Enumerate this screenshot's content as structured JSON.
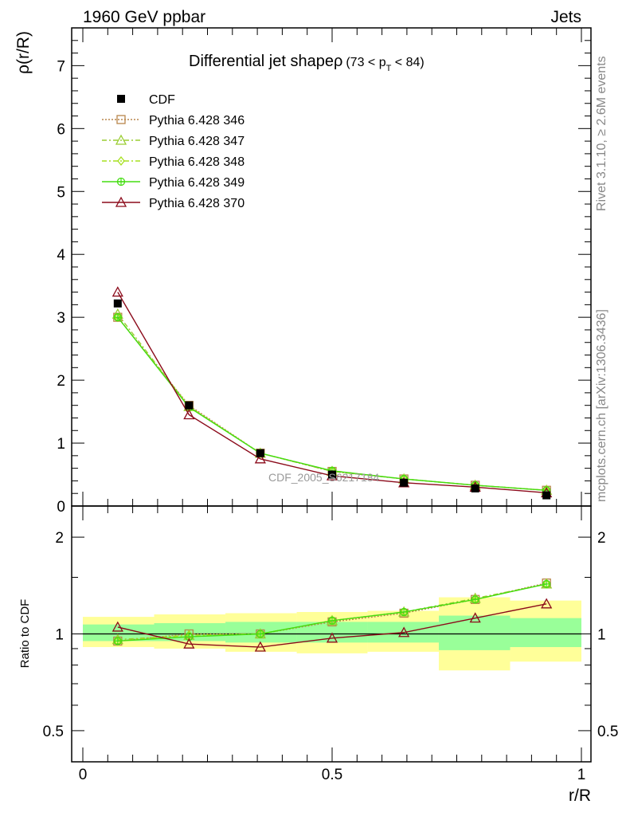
{
  "header": {
    "left": "1960 GeV ppbar",
    "right": "Jets"
  },
  "side_labels": {
    "rivet": "Rivet 3.1.10, ≥ 2.6M events",
    "mcplots": "mcplots.cern.ch [arXiv:1306.3436]"
  },
  "watermark": "CDF_2005_S6217184",
  "chart_data": [
    {
      "type": "line",
      "panel": "main",
      "title_main": "Differential jet shapeρ",
      "title_cut_pre": "(73 < p",
      "title_cut_sub": "T",
      "title_cut_post": " < 84)",
      "ylabel": "ρ(r/R)",
      "xlim": [
        0,
        1
      ],
      "ylim": [
        0,
        7.6
      ],
      "yticks": [
        0,
        1,
        2,
        3,
        4,
        5,
        6,
        7
      ],
      "yticklabels": [
        "0",
        "1",
        "2",
        "3",
        "4",
        "5",
        "6",
        "7"
      ],
      "legend_position": "top-left",
      "x": [
        0.07,
        0.213,
        0.356,
        0.5,
        0.644,
        0.787,
        0.93
      ],
      "series": [
        {
          "name": "CDF",
          "marker": "filled-square",
          "color": "#000000",
          "style": "solid",
          "values": [
            3.22,
            1.6,
            0.84,
            0.5,
            0.37,
            0.28,
            0.17
          ]
        },
        {
          "name": "Pythia 6.428 346",
          "marker": "open-square",
          "color": "#b8864b",
          "style": "dotted",
          "values": [
            3.0,
            1.6,
            0.84,
            0.55,
            0.43,
            0.33,
            0.25
          ]
        },
        {
          "name": "Pythia 6.428 347",
          "marker": "open-triangle",
          "color": "#9acd32",
          "style": "dashdot",
          "values": [
            3.05,
            1.58,
            0.84,
            0.55,
            0.43,
            0.33,
            0.25
          ]
        },
        {
          "name": "Pythia 6.428 348",
          "marker": "open-diamond",
          "color": "#a6e01e",
          "style": "dashdot",
          "values": [
            3.0,
            1.58,
            0.84,
            0.56,
            0.43,
            0.33,
            0.25
          ]
        },
        {
          "name": "Pythia 6.428 349",
          "marker": "circle-cross",
          "color": "#44dd11",
          "style": "solid",
          "values": [
            3.0,
            1.57,
            0.84,
            0.56,
            0.43,
            0.33,
            0.25
          ]
        },
        {
          "name": "Pythia 6.428 370",
          "marker": "open-triangle",
          "color": "#8b0a1a",
          "style": "solid",
          "values": [
            3.4,
            1.45,
            0.75,
            0.48,
            0.37,
            0.3,
            0.21
          ]
        }
      ]
    },
    {
      "type": "line",
      "panel": "ratio",
      "ylabel": "Ratio to CDF",
      "xlabel": "r/R",
      "xlim": [
        0,
        1
      ],
      "ylim": [
        0.4,
        2.5
      ],
      "ylog": true,
      "yticks": [
        0.5,
        1,
        2
      ],
      "yticklabels": [
        "0.5",
        "1",
        "2"
      ],
      "xticks": [
        0,
        0.5,
        1
      ],
      "xticklabels": [
        "0",
        "0.5",
        "1"
      ],
      "bands": {
        "x_edges": [
          0,
          0.143,
          0.286,
          0.429,
          0.571,
          0.714,
          0.857,
          1.0
        ],
        "stat": [
          [
            0.95,
            1.07
          ],
          [
            0.95,
            1.08
          ],
          [
            0.94,
            1.09
          ],
          [
            0.94,
            1.09
          ],
          [
            0.94,
            1.09
          ],
          [
            0.89,
            1.14
          ],
          [
            0.91,
            1.12
          ]
        ],
        "total": [
          [
            0.91,
            1.13
          ],
          [
            0.9,
            1.15
          ],
          [
            0.88,
            1.16
          ],
          [
            0.87,
            1.17
          ],
          [
            0.88,
            1.18
          ],
          [
            0.77,
            1.3
          ],
          [
            0.82,
            1.27
          ]
        ],
        "stat_color": "#99ff99",
        "total_color": "#ffff99"
      },
      "reference_line": 1,
      "x": [
        0.07,
        0.213,
        0.356,
        0.5,
        0.644,
        0.787,
        0.93
      ],
      "series": [
        {
          "name": "Pythia 6.428 346",
          "values": [
            0.95,
            1.0,
            1.0,
            1.09,
            1.16,
            1.28,
            1.44
          ]
        },
        {
          "name": "Pythia 6.428 347",
          "values": [
            0.96,
            0.99,
            1.0,
            1.1,
            1.17,
            1.29,
            1.43
          ]
        },
        {
          "name": "Pythia 6.428 348",
          "values": [
            0.95,
            0.99,
            1.0,
            1.1,
            1.17,
            1.28,
            1.43
          ]
        },
        {
          "name": "Pythia 6.428 349",
          "values": [
            0.95,
            0.98,
            1.0,
            1.1,
            1.17,
            1.28,
            1.43
          ]
        },
        {
          "name": "Pythia 6.428 370",
          "values": [
            1.05,
            0.93,
            0.91,
            0.97,
            1.01,
            1.12,
            1.24
          ]
        }
      ]
    }
  ]
}
